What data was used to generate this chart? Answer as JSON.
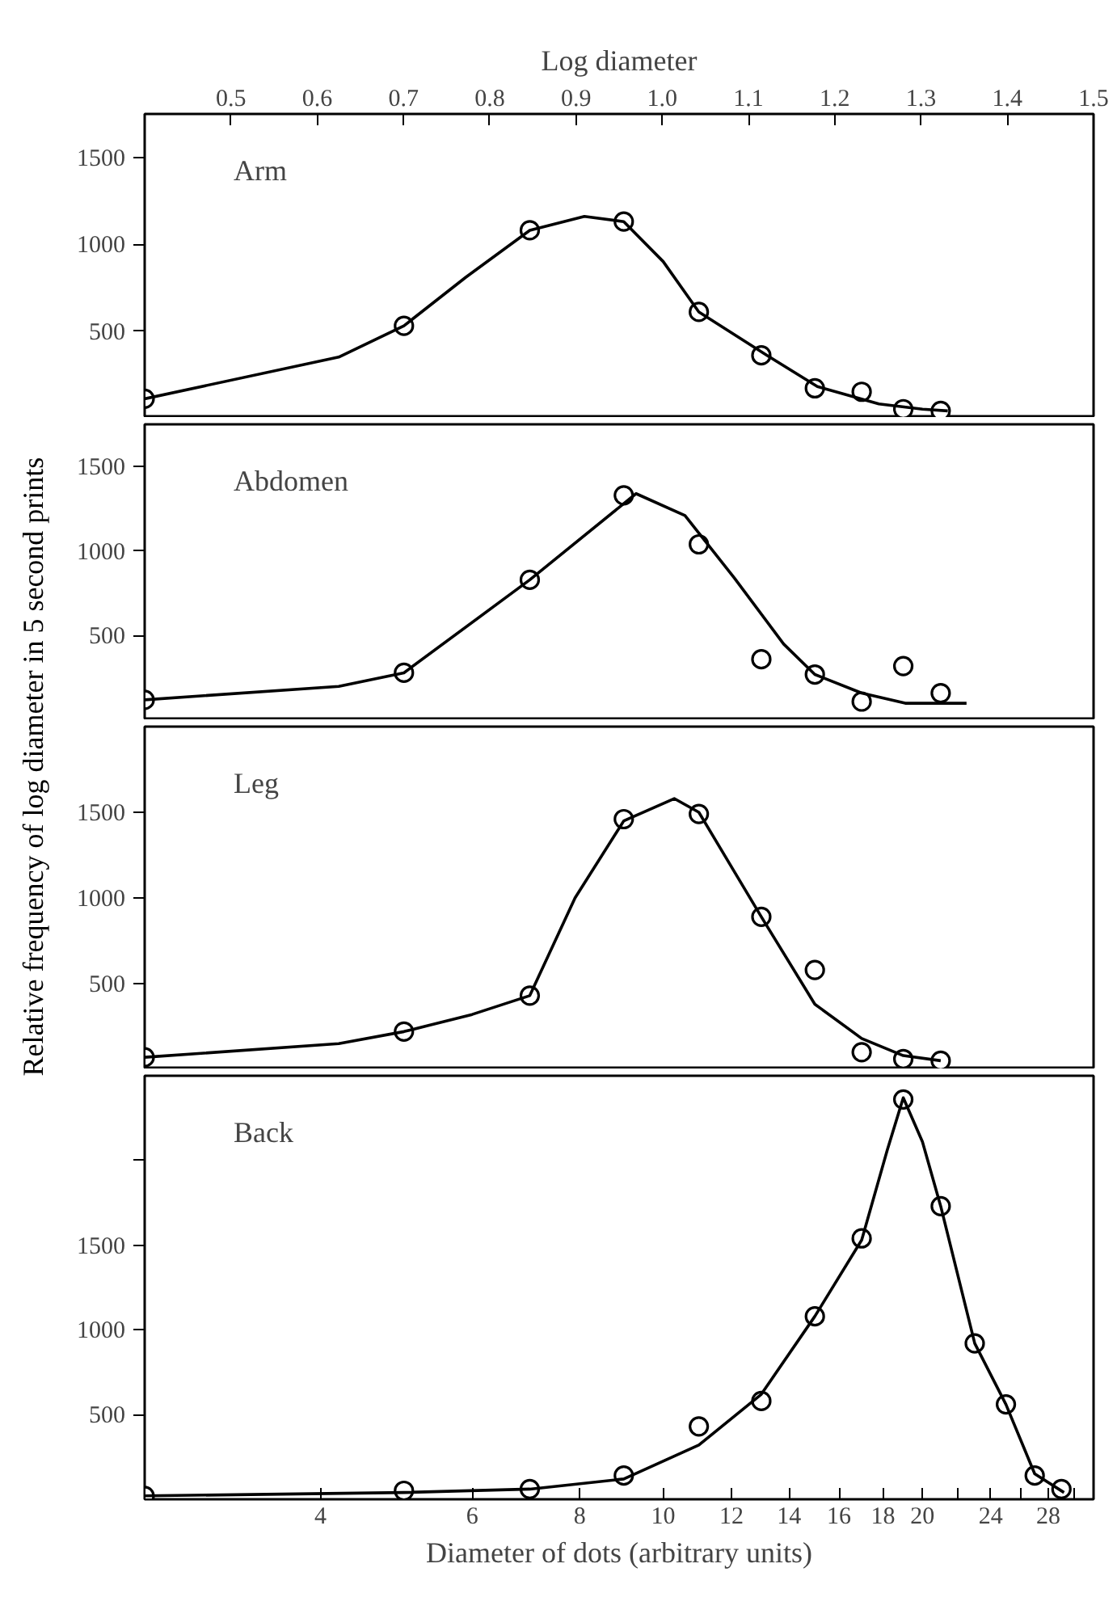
{
  "chart_data": [
    {
      "type": "scatter",
      "annotations": [
        "Arm"
      ],
      "ylabel": "Relative frequency of log diameter in 5 second prints",
      "x2label": "Log diameter",
      "log": "x",
      "xlim": [
        2.5,
        31.6
      ],
      "x2lim": [
        0.4,
        1.5
      ],
      "x2ticks": [
        0.5,
        0.6,
        0.7,
        0.8,
        0.9,
        {
          "value": 1.0,
          "label": "1.0"
        },
        1.1,
        1.2,
        1.3,
        1.4,
        1.5
      ],
      "ylim": [
        0,
        1750
      ],
      "yticks": [
        500,
        1000,
        1500
      ],
      "tick_labels": "y",
      "marker": "circle",
      "series": [
        {
          "color": "#000000",
          "x": [
            2.5,
            5,
            7,
            9,
            11,
            13,
            15,
            17,
            19,
            21
          ],
          "values": [
            110,
            530,
            1080,
            1130,
            610,
            360,
            170,
            150,
            50,
            40
          ]
        },
        {
          "type": "line",
          "marker": "none",
          "color": "#000000",
          "x": [
            2.5,
            4.2,
            5,
            5.9,
            7,
            8.1,
            9,
            10,
            11,
            13.2,
            15.1,
            17.8,
            20,
            21.4
          ],
          "values": [
            110,
            350,
            530,
            810,
            1080,
            1160,
            1130,
            900,
            610,
            360,
            180,
            80,
            50,
            40
          ]
        }
      ]
    },
    {
      "type": "scatter",
      "annotations": [
        "Abdomen"
      ],
      "log": "x",
      "xlim": [
        2.5,
        31.6
      ],
      "ylim": [
        0,
        1750
      ],
      "yticks": [
        500,
        1000,
        1500
      ],
      "tick_labels": "y",
      "marker": "circle",
      "series": [
        {
          "color": "#000000",
          "x": [
            2.5,
            5,
            7,
            9,
            11,
            13,
            15,
            17,
            19,
            21
          ],
          "values": [
            120,
            280,
            830,
            1330,
            1040,
            360,
            270,
            110,
            320,
            160
          ]
        },
        {
          "type": "line",
          "marker": "none",
          "color": "#000000",
          "x": [
            2.5,
            4.2,
            5,
            7,
            9.3,
            10.6,
            12.1,
            13.8,
            15,
            17,
            19.1,
            22.5
          ],
          "values": [
            120,
            200,
            280,
            830,
            1340,
            1210,
            840,
            450,
            270,
            160,
            100,
            100
          ]
        }
      ]
    },
    {
      "type": "scatter",
      "annotations": [
        "Leg"
      ],
      "log": "x",
      "xlim": [
        2.5,
        31.6
      ],
      "ylim": [
        0,
        2000
      ],
      "yticks": [
        500,
        1000,
        1500
      ],
      "tick_labels": "y",
      "marker": "circle",
      "series": [
        {
          "color": "#000000",
          "x": [
            2.5,
            5,
            7,
            9,
            11,
            13,
            15,
            17,
            19,
            21
          ],
          "values": [
            70,
            220,
            430,
            1460,
            1490,
            890,
            580,
            100,
            60,
            50
          ]
        },
        {
          "type": "line",
          "marker": "none",
          "color": "#000000",
          "x": [
            2.5,
            4.2,
            5,
            6,
            7,
            7.9,
            9,
            10.3,
            11,
            13,
            15,
            17,
            19,
            21
          ],
          "values": [
            70,
            150,
            220,
            320,
            430,
            1000,
            1450,
            1580,
            1500,
            890,
            380,
            180,
            80,
            50
          ]
        }
      ]
    },
    {
      "type": "scatter",
      "annotations": [
        "Back"
      ],
      "xlabel": "Diameter of dots (arbitrary units)",
      "log": "x",
      "xlim": [
        2.5,
        31.6
      ],
      "xticks": [
        4,
        6,
        8,
        10,
        12,
        14,
        16,
        18,
        20,
        {
          "value": 22,
          "label": null
        },
        24,
        {
          "value": 26,
          "label": null
        },
        28,
        {
          "value": 30,
          "label": null
        }
      ],
      "ylim": [
        0,
        2500
      ],
      "yticks": [
        500,
        1000,
        1500,
        {
          "value": 2000,
          "label": null
        }
      ],
      "marker": "circle",
      "series": [
        {
          "color": "#000000",
          "x": [
            2.5,
            5,
            7,
            9,
            11,
            13,
            15,
            17,
            19,
            21,
            23,
            25,
            27,
            29
          ],
          "values": [
            20,
            50,
            60,
            140,
            430,
            580,
            1080,
            1540,
            2360,
            1730,
            920,
            560,
            140,
            60
          ]
        },
        {
          "type": "line",
          "marker": "none",
          "color": "#000000",
          "x": [
            2.5,
            5,
            7,
            9,
            11,
            13,
            15,
            17,
            18.2,
            19,
            20,
            21,
            23,
            25,
            27,
            29.2
          ],
          "values": [
            20,
            40,
            60,
            120,
            320,
            620,
            1080,
            1530,
            2060,
            2370,
            2110,
            1730,
            920,
            560,
            150,
            40
          ]
        }
      ]
    }
  ]
}
